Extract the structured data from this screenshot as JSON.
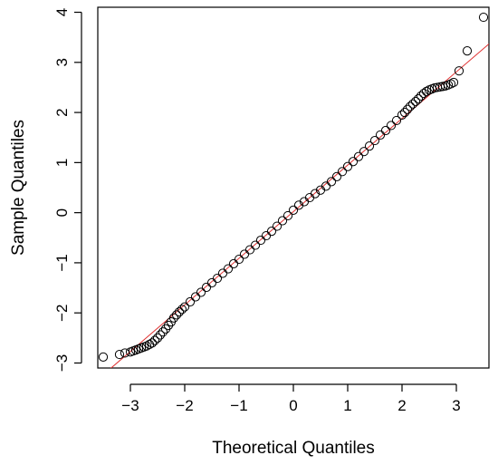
{
  "chart_data": {
    "type": "scatter",
    "title": "",
    "xlabel": "Theoretical Quantiles",
    "ylabel": "Sample Quantiles",
    "xlim": [
      -3.6,
      3.6
    ],
    "ylim": [
      -3.1,
      4.1
    ],
    "x_ticks": [
      -3,
      -2,
      -1,
      0,
      1,
      2,
      3
    ],
    "y_ticks": [
      -3,
      -2,
      -1,
      0,
      1,
      2,
      3,
      4
    ],
    "x_tick_labels": [
      "−3",
      "−2",
      "−1",
      "0",
      "1",
      "2",
      "3"
    ],
    "y_tick_labels": [
      "−3",
      "−2",
      "−1",
      "0",
      "1",
      "2",
      "3",
      "4"
    ],
    "grid": false,
    "legend": "none",
    "reference_line": {
      "intercept": 0.02,
      "slope": 0.93,
      "color": "#e03030"
    },
    "marker": "open-circle",
    "point_color": "#000000",
    "series": [
      {
        "x": [
          -3.5,
          -3.2,
          -3.1,
          -3.0,
          -2.95,
          -2.9,
          -2.85,
          -2.8,
          -2.75,
          -2.7,
          -2.65,
          -2.6,
          -2.55,
          -2.5,
          -2.45,
          -2.4,
          -2.35,
          -2.3,
          -2.25,
          -2.2,
          -2.15,
          -2.1,
          -2.05,
          -2.0,
          -1.9,
          -1.8,
          -1.7,
          -1.6,
          -1.5,
          -1.4,
          -1.3,
          -1.2,
          -1.1,
          -1.0,
          -0.9,
          -0.8,
          -0.7,
          -0.6,
          -0.5,
          -0.4,
          -0.3,
          -0.2,
          -0.1,
          0.0,
          0.1,
          0.2,
          0.3,
          0.4,
          0.5,
          0.6,
          0.7,
          0.8,
          0.9,
          1.0,
          1.1,
          1.2,
          1.3,
          1.4,
          1.5,
          1.6,
          1.7,
          1.8,
          1.9,
          2.0,
          2.05,
          2.1,
          2.15,
          2.2,
          2.25,
          2.3,
          2.35,
          2.4,
          2.45,
          2.5,
          2.55,
          2.6,
          2.65,
          2.7,
          2.75,
          2.8,
          2.85,
          2.9,
          2.95,
          3.05,
          3.2,
          3.5
        ],
        "y": [
          -2.88,
          -2.83,
          -2.8,
          -2.78,
          -2.76,
          -2.74,
          -2.72,
          -2.7,
          -2.68,
          -2.66,
          -2.63,
          -2.6,
          -2.55,
          -2.5,
          -2.44,
          -2.38,
          -2.32,
          -2.25,
          -2.18,
          -2.1,
          -2.04,
          -1.98,
          -1.93,
          -1.88,
          -1.78,
          -1.68,
          -1.59,
          -1.49,
          -1.4,
          -1.31,
          -1.21,
          -1.12,
          -1.02,
          -0.93,
          -0.83,
          -0.74,
          -0.65,
          -0.55,
          -0.46,
          -0.37,
          -0.27,
          -0.16,
          -0.06,
          0.05,
          0.15,
          0.22,
          0.3,
          0.38,
          0.45,
          0.53,
          0.62,
          0.72,
          0.82,
          0.92,
          1.02,
          1.12,
          1.22,
          1.33,
          1.44,
          1.55,
          1.64,
          1.74,
          1.84,
          1.95,
          2.0,
          2.06,
          2.12,
          2.17,
          2.22,
          2.27,
          2.33,
          2.38,
          2.42,
          2.45,
          2.47,
          2.49,
          2.5,
          2.51,
          2.52,
          2.53,
          2.55,
          2.57,
          2.6,
          2.83,
          3.23,
          3.9
        ]
      }
    ]
  }
}
